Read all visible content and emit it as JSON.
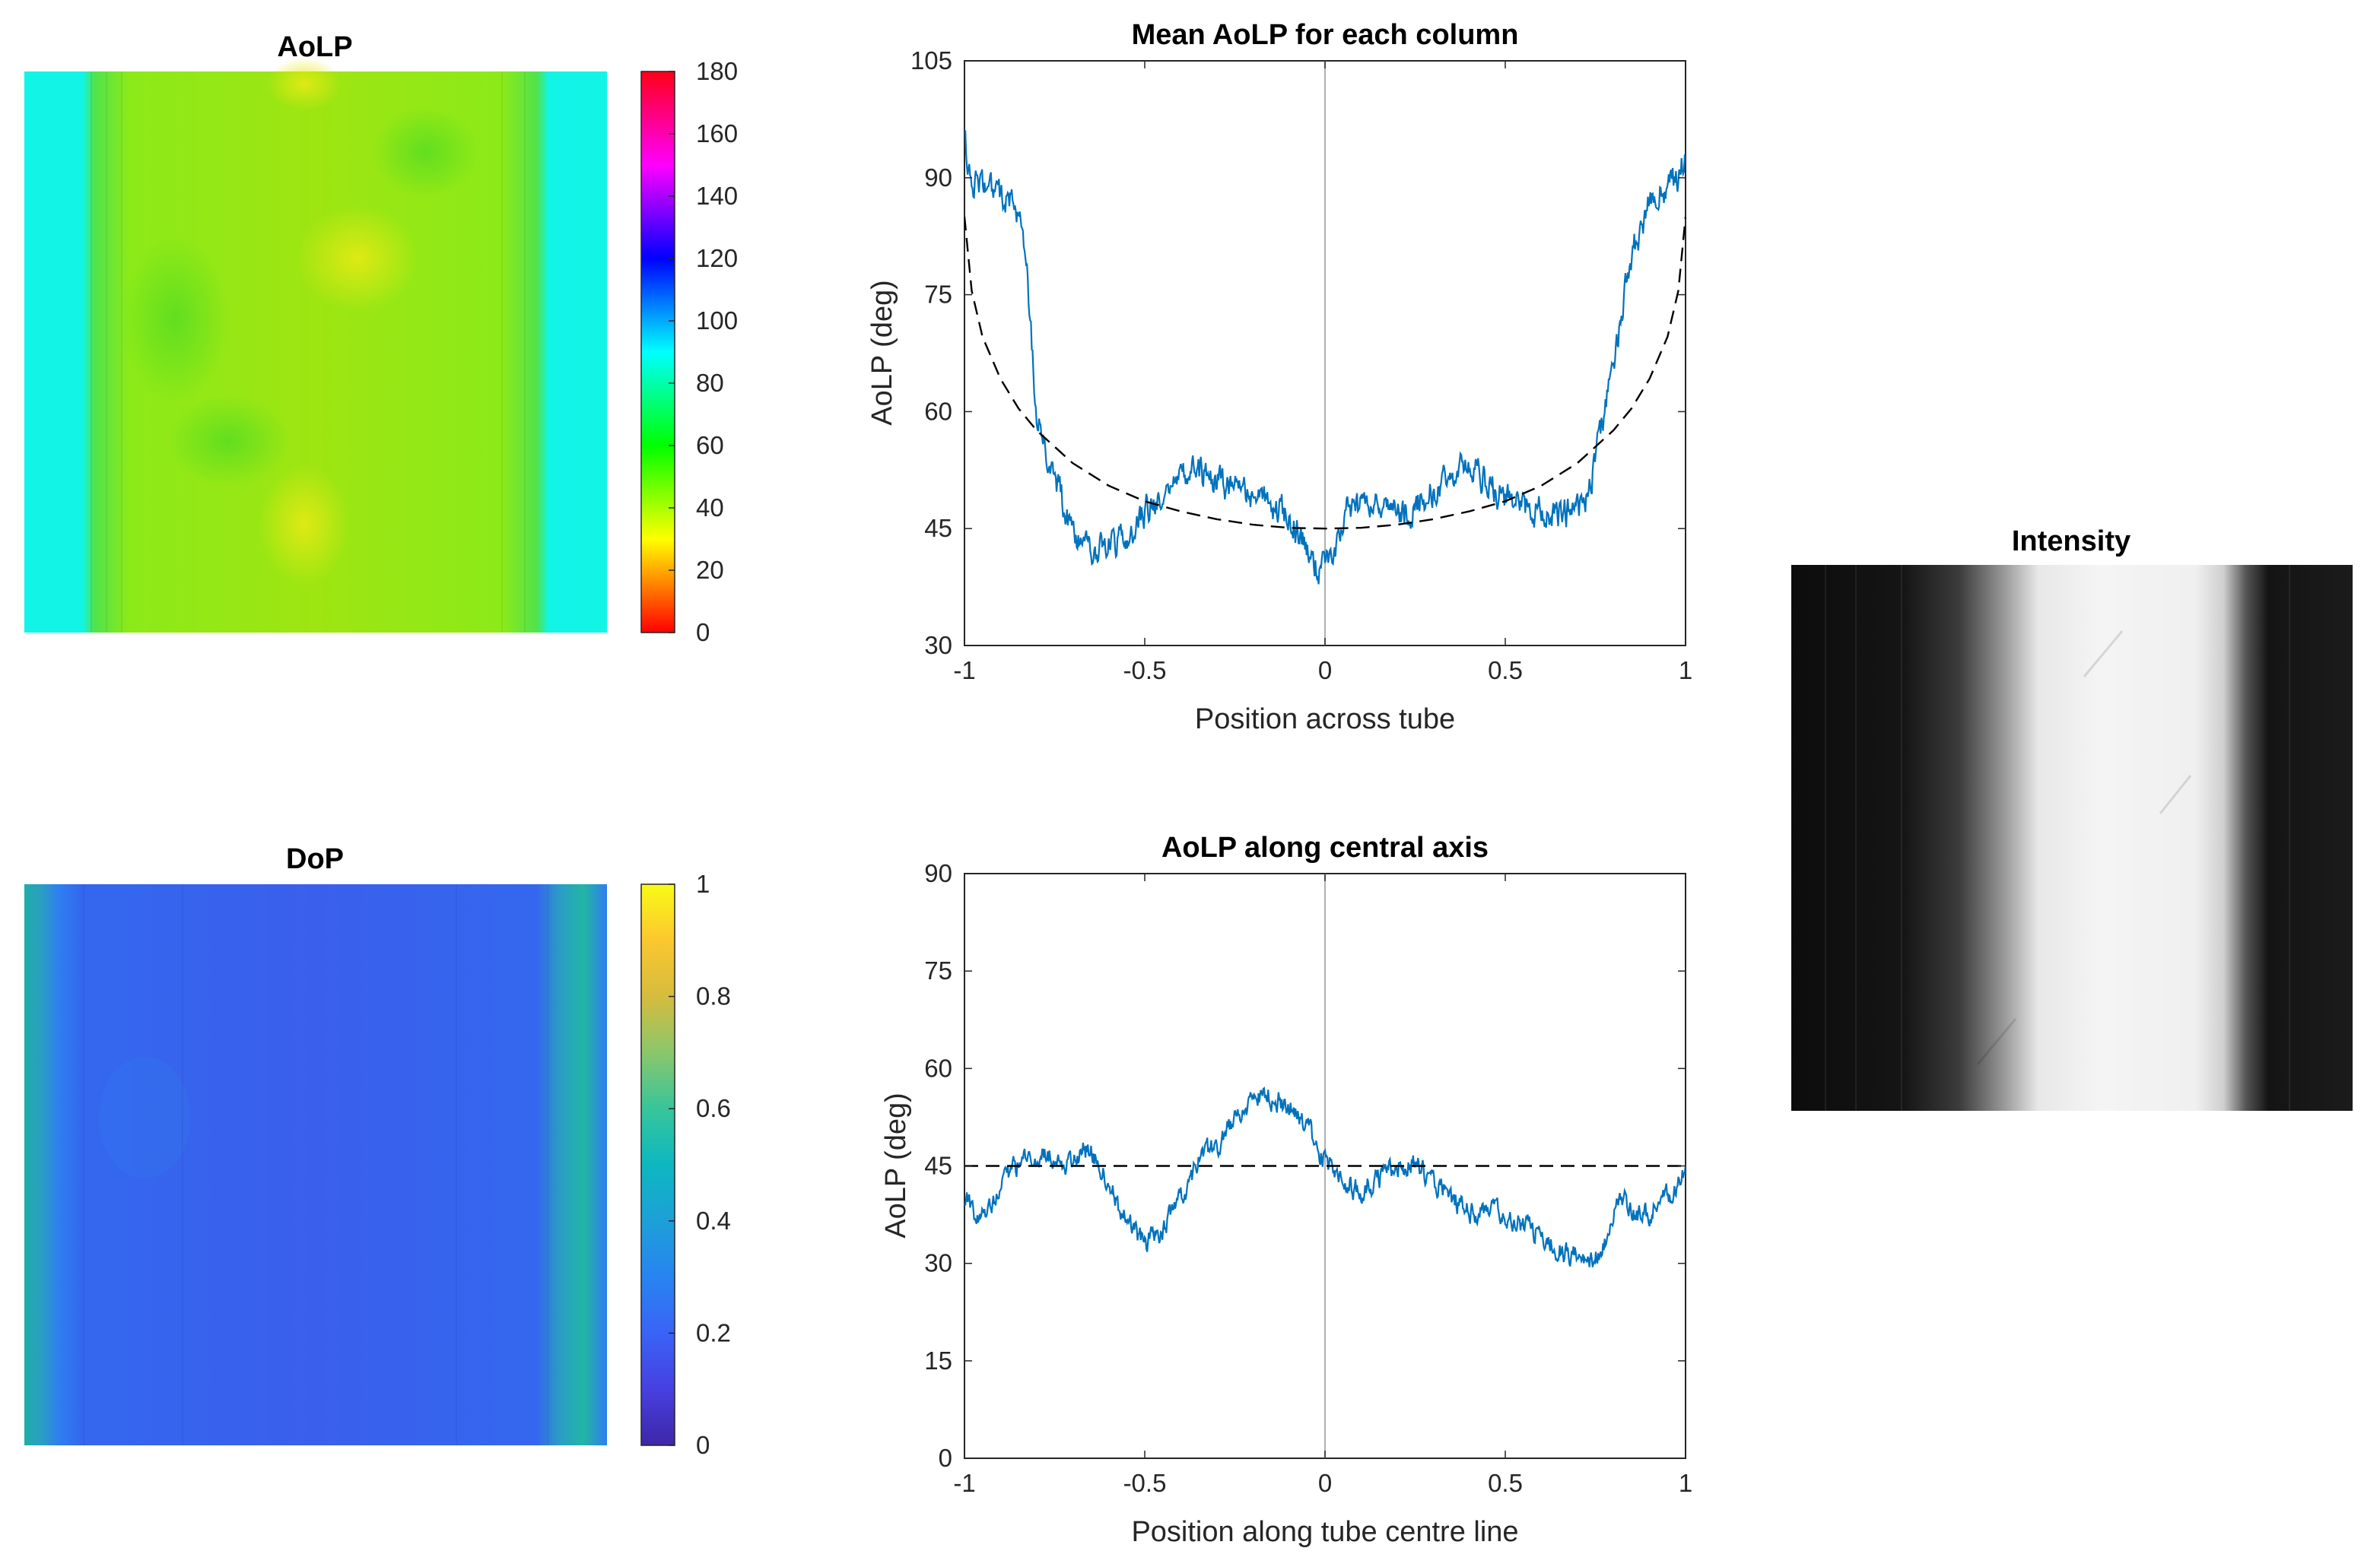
{
  "chart_data": [
    {
      "type": "heatmap",
      "title": "AoLP",
      "colormap": "hsv",
      "colorbar_ticks": [
        "0",
        "20",
        "40",
        "60",
        "80",
        "100",
        "120",
        "140",
        "160",
        "180"
      ],
      "clim": [
        0,
        180
      ],
      "profile_across": [
        {
          "x": -1.0,
          "v": 90
        },
        {
          "x": -0.9,
          "v": 88
        },
        {
          "x": -0.82,
          "v": 56
        },
        {
          "x": -0.6,
          "v": 52
        },
        {
          "x": -0.3,
          "v": 48
        },
        {
          "x": 0.0,
          "v": 45
        },
        {
          "x": 0.3,
          "v": 48
        },
        {
          "x": 0.6,
          "v": 52
        },
        {
          "x": 0.82,
          "v": 56
        },
        {
          "x": 0.9,
          "v": 88
        },
        {
          "x": 1.0,
          "v": 90
        }
      ]
    },
    {
      "type": "heatmap",
      "title": "DoP",
      "colormap": "parula",
      "colorbar_ticks": [
        "0",
        "0.2",
        "0.4",
        "0.6",
        "0.8",
        "1"
      ],
      "clim": [
        0,
        1
      ],
      "profile_across": [
        {
          "x": -1.0,
          "v": 0.45
        },
        {
          "x": -0.92,
          "v": 0.4
        },
        {
          "x": -0.85,
          "v": 0.2
        },
        {
          "x": 0.0,
          "v": 0.15
        },
        {
          "x": 0.85,
          "v": 0.2
        },
        {
          "x": 0.92,
          "v": 0.4
        },
        {
          "x": 1.0,
          "v": 0.45
        }
      ]
    },
    {
      "type": "line",
      "title": "Mean AoLP for each column",
      "xlabel": "Position across tube",
      "ylabel": "AoLP (deg)",
      "xlim": [
        -1,
        1
      ],
      "ylim": [
        30,
        105
      ],
      "xticks": [
        "-1",
        "-0.5",
        "0",
        "0.5",
        "1"
      ],
      "yticks": [
        "30",
        "45",
        "60",
        "75",
        "90",
        "105"
      ],
      "vline_x": 0,
      "series": [
        {
          "color": "#0072bd",
          "style": "solid",
          "noise": 2.0,
          "points": [
            [
              -1.0,
              97
            ],
            [
              -0.99,
              90
            ],
            [
              -0.95,
              89
            ],
            [
              -0.9,
              88
            ],
            [
              -0.86,
              87
            ],
            [
              -0.83,
              80
            ],
            [
              -0.8,
              60
            ],
            [
              -0.78,
              56
            ],
            [
              -0.75,
              52
            ],
            [
              -0.7,
              44
            ],
            [
              -0.65,
              42
            ],
            [
              -0.6,
              43
            ],
            [
              -0.55,
              44
            ],
            [
              -0.5,
              47
            ],
            [
              -0.45,
              49
            ],
            [
              -0.4,
              52
            ],
            [
              -0.35,
              52
            ],
            [
              -0.3,
              51
            ],
            [
              -0.25,
              50
            ],
            [
              -0.2,
              49
            ],
            [
              -0.15,
              48
            ],
            [
              -0.1,
              47
            ],
            [
              -0.07,
              44
            ],
            [
              -0.04,
              41
            ],
            [
              -0.02,
              40
            ],
            [
              0.0,
              41
            ],
            [
              0.03,
              43
            ],
            [
              0.06,
              47
            ],
            [
              0.1,
              48
            ],
            [
              0.15,
              48
            ],
            [
              0.2,
              47
            ],
            [
              0.25,
              48
            ],
            [
              0.3,
              50
            ],
            [
              0.35,
              52
            ],
            [
              0.4,
              53
            ],
            [
              0.45,
              51
            ],
            [
              0.5,
              49
            ],
            [
              0.55,
              48
            ],
            [
              0.6,
              47
            ],
            [
              0.65,
              47
            ],
            [
              0.7,
              47
            ],
            [
              0.73,
              50
            ],
            [
              0.76,
              56
            ],
            [
              0.8,
              66
            ],
            [
              0.85,
              80
            ],
            [
              0.9,
              87
            ],
            [
              0.95,
              89
            ],
            [
              0.98,
              90
            ],
            [
              1.0,
              93
            ]
          ]
        },
        {
          "color": "#000000",
          "style": "dashed",
          "noise": 0,
          "points": [
            [
              -1.0,
              85
            ],
            [
              -0.98,
              75.5
            ],
            [
              -0.95,
              69.6
            ],
            [
              -0.9,
              64.2
            ],
            [
              -0.85,
              60.4
            ],
            [
              -0.8,
              57.6
            ],
            [
              -0.7,
              53.4
            ],
            [
              -0.6,
              50.5
            ],
            [
              -0.5,
              48.5
            ],
            [
              -0.4,
              47.2
            ],
            [
              -0.3,
              46.2
            ],
            [
              -0.2,
              45.5
            ],
            [
              -0.1,
              45.1
            ],
            [
              0.0,
              45.0
            ],
            [
              0.1,
              45.1
            ],
            [
              0.2,
              45.5
            ],
            [
              0.3,
              46.2
            ],
            [
              0.4,
              47.2
            ],
            [
              0.5,
              48.5
            ],
            [
              0.6,
              50.5
            ],
            [
              0.7,
              53.4
            ],
            [
              0.8,
              57.6
            ],
            [
              0.85,
              60.4
            ],
            [
              0.9,
              64.2
            ],
            [
              0.95,
              69.6
            ],
            [
              0.98,
              75.5
            ],
            [
              1.0,
              85
            ]
          ]
        }
      ]
    },
    {
      "type": "line",
      "title": "AoLP along central axis",
      "xlabel": "Position along tube centre line",
      "ylabel": "AoLP (deg)",
      "xlim": [
        -1,
        1
      ],
      "ylim": [
        0,
        90
      ],
      "xticks": [
        "-1",
        "-0.5",
        "0",
        "0.5",
        "1"
      ],
      "yticks": [
        "0",
        "15",
        "30",
        "45",
        "60",
        "75",
        "90"
      ],
      "vline_x": 0,
      "series": [
        {
          "color": "#0072bd",
          "style": "solid",
          "noise": 1.8,
          "points": [
            [
              -1.0,
              40
            ],
            [
              -0.97,
              37
            ],
            [
              -0.93,
              38
            ],
            [
              -0.9,
              42
            ],
            [
              -0.86,
              45
            ],
            [
              -0.8,
              46
            ],
            [
              -0.75,
              47
            ],
            [
              -0.7,
              45
            ],
            [
              -0.67,
              48
            ],
            [
              -0.63,
              46
            ],
            [
              -0.6,
              42
            ],
            [
              -0.55,
              36
            ],
            [
              -0.5,
              33
            ],
            [
              -0.45,
              35
            ],
            [
              -0.4,
              40
            ],
            [
              -0.35,
              46
            ],
            [
              -0.3,
              48
            ],
            [
              -0.25,
              52
            ],
            [
              -0.2,
              55
            ],
            [
              -0.16,
              56
            ],
            [
              -0.12,
              55
            ],
            [
              -0.08,
              53
            ],
            [
              -0.04,
              50
            ],
            [
              0.0,
              46
            ],
            [
              0.05,
              43
            ],
            [
              0.1,
              41
            ],
            [
              0.15,
              43
            ],
            [
              0.2,
              45
            ],
            [
              0.25,
              45
            ],
            [
              0.3,
              43
            ],
            [
              0.35,
              40
            ],
            [
              0.4,
              38
            ],
            [
              0.45,
              38
            ],
            [
              0.5,
              37
            ],
            [
              0.55,
              36
            ],
            [
              0.6,
              34
            ],
            [
              0.65,
              32
            ],
            [
              0.7,
              31
            ],
            [
              0.73,
              31
            ],
            [
              0.76,
              31
            ],
            [
              0.79,
              35
            ],
            [
              0.82,
              40
            ],
            [
              0.85,
              38
            ],
            [
              0.88,
              37
            ],
            [
              0.92,
              39
            ],
            [
              0.96,
              41
            ],
            [
              1.0,
              44
            ]
          ]
        },
        {
          "color": "#000000",
          "style": "dashed",
          "noise": 0,
          "points": [
            [
              -1.0,
              45
            ],
            [
              1.0,
              45
            ]
          ]
        }
      ]
    },
    {
      "type": "heatmap",
      "title": "Intensity",
      "colormap": "gray",
      "profile_across": [
        {
          "x": -1.0,
          "v": 0.05
        },
        {
          "x": -0.6,
          "v": 0.12
        },
        {
          "x": -0.38,
          "v": 0.35
        },
        {
          "x": -0.25,
          "v": 0.8
        },
        {
          "x": -0.15,
          "v": 0.95
        },
        {
          "x": 0.5,
          "v": 0.96
        },
        {
          "x": 0.6,
          "v": 0.8
        },
        {
          "x": 0.68,
          "v": 0.3
        },
        {
          "x": 0.75,
          "v": 0.08
        },
        {
          "x": 1.0,
          "v": 0.08
        }
      ]
    }
  ]
}
